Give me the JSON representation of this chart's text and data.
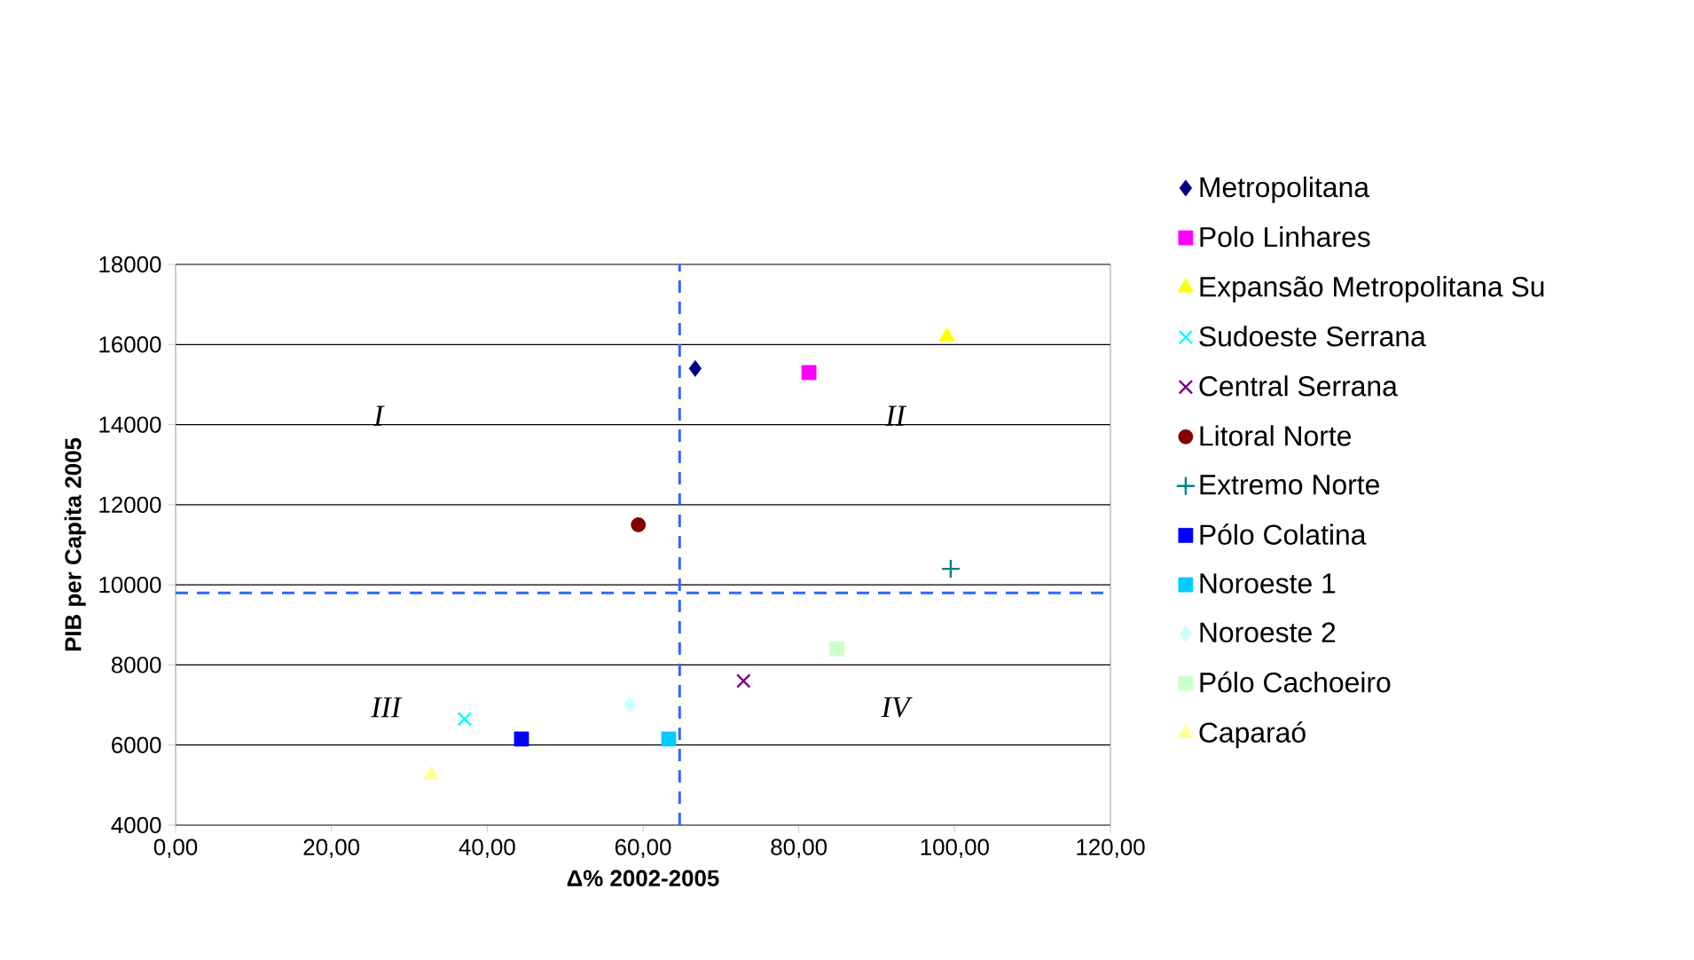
{
  "chart_data": {
    "type": "scatter",
    "xlabel": "Δ% 2002-2005",
    "ylabel": "PIB per Capita 2005",
    "xlim": [
      0,
      120
    ],
    "xticks": [
      {
        "value": 0,
        "label": "0,00"
      },
      {
        "value": 20,
        "label": "20,00"
      },
      {
        "value": 40,
        "label": "40,00"
      },
      {
        "value": 60,
        "label": "60,00"
      },
      {
        "value": 80,
        "label": "80,00"
      },
      {
        "value": 100,
        "label": "100,00"
      },
      {
        "value": 120,
        "label": "120,00"
      }
    ],
    "ylim": [
      4000,
      18000
    ],
    "yticks": [
      4000,
      6000,
      8000,
      10000,
      12000,
      14000,
      16000,
      18000
    ],
    "grid": "y",
    "legend": "right",
    "series": [
      {
        "name": "Metropolitana",
        "color": "#000080",
        "marker": "diamond",
        "x": [
          66.7
        ],
        "values": [
          15400
        ]
      },
      {
        "name": "Polo Linhares",
        "color": "#ff00ff",
        "marker": "square",
        "x": [
          81.3
        ],
        "values": [
          15300
        ]
      },
      {
        "name": "Expansão Metropolitana Su",
        "color": "#ffff00",
        "marker": "triangle",
        "x": [
          99.0
        ],
        "values": [
          16200
        ]
      },
      {
        "name": "Sudoeste Serrana",
        "color": "#00ffff",
        "marker": "cross",
        "x": [
          37.1
        ],
        "values": [
          6650
        ]
      },
      {
        "name": "Central Serrana",
        "color": "#800080",
        "marker": "cross",
        "x": [
          72.9
        ],
        "values": [
          7600
        ]
      },
      {
        "name": "Litoral Norte",
        "color": "#800000",
        "marker": "circle",
        "x": [
          59.4
        ],
        "values": [
          11500
        ]
      },
      {
        "name": "Extremo Norte",
        "color": "#008080",
        "marker": "plus",
        "x": [
          99.5
        ],
        "values": [
          10400
        ]
      },
      {
        "name": "Pólo Colatina",
        "color": "#0000ff",
        "marker": "square",
        "x": [
          44.4
        ],
        "values": [
          6150
        ]
      },
      {
        "name": "Noroeste 1",
        "color": "#00ccff",
        "marker": "square",
        "x": [
          63.3
        ],
        "values": [
          6150
        ]
      },
      {
        "name": "Noroeste 2",
        "color": "#ccffff",
        "marker": "diamond",
        "x": [
          58.3
        ],
        "values": [
          7000
        ]
      },
      {
        "name": "Pólo Cachoeiro",
        "color": "#ccffcc",
        "marker": "square",
        "x": [
          84.9
        ],
        "values": [
          8400
        ]
      },
      {
        "name": "Caparaó",
        "color": "#ffff99",
        "marker": "triangle",
        "x": [
          32.8
        ],
        "values": [
          5250
        ]
      }
    ],
    "ref_lines": [
      {
        "axis": "x",
        "value": 64.7,
        "color": "#3366ff",
        "line_style": "dashed"
      },
      {
        "axis": "y",
        "value": 9800,
        "color": "#3366ff",
        "line_style": "dashed"
      }
    ],
    "annotations": [
      "I",
      "II",
      "III",
      "IV"
    ]
  }
}
